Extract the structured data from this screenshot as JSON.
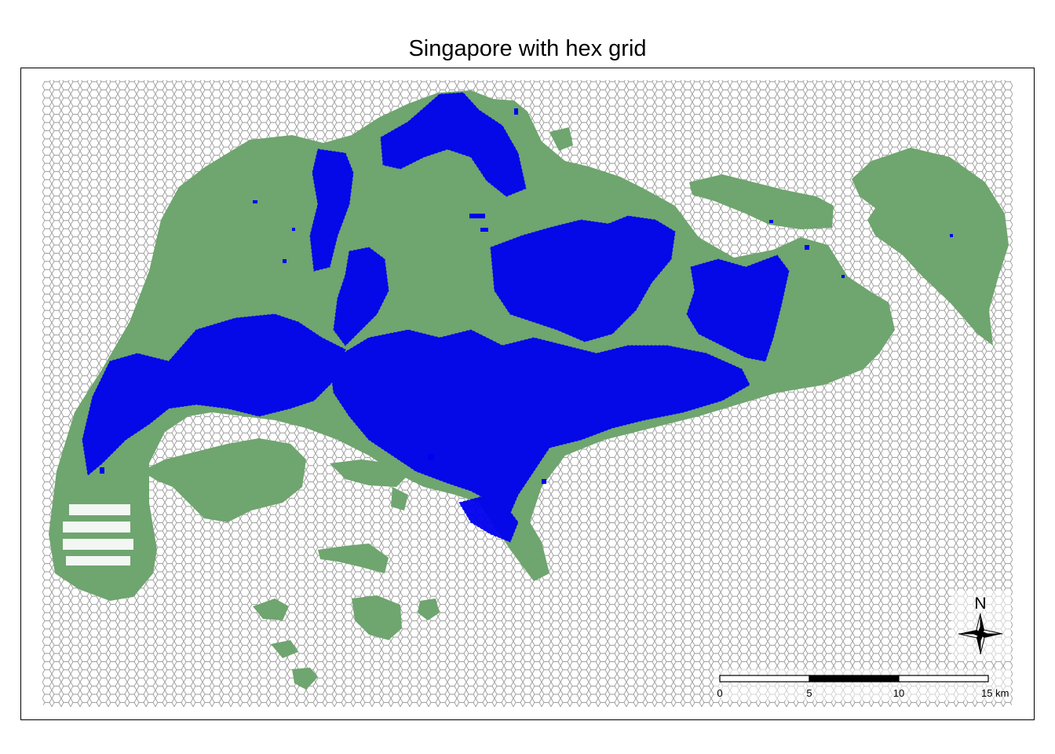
{
  "map": {
    "title": "Singapore with hex grid",
    "colors": {
      "land": "#6FA56F",
      "features": "#0000EE",
      "hex_grid": "#9A9A9A",
      "frame": "#000000"
    },
    "north_arrow": {
      "label": "N",
      "icon": "compass-rose-icon"
    },
    "scale_bar": {
      "ticks": [
        "0",
        "5",
        "10",
        "15 km"
      ]
    }
  }
}
